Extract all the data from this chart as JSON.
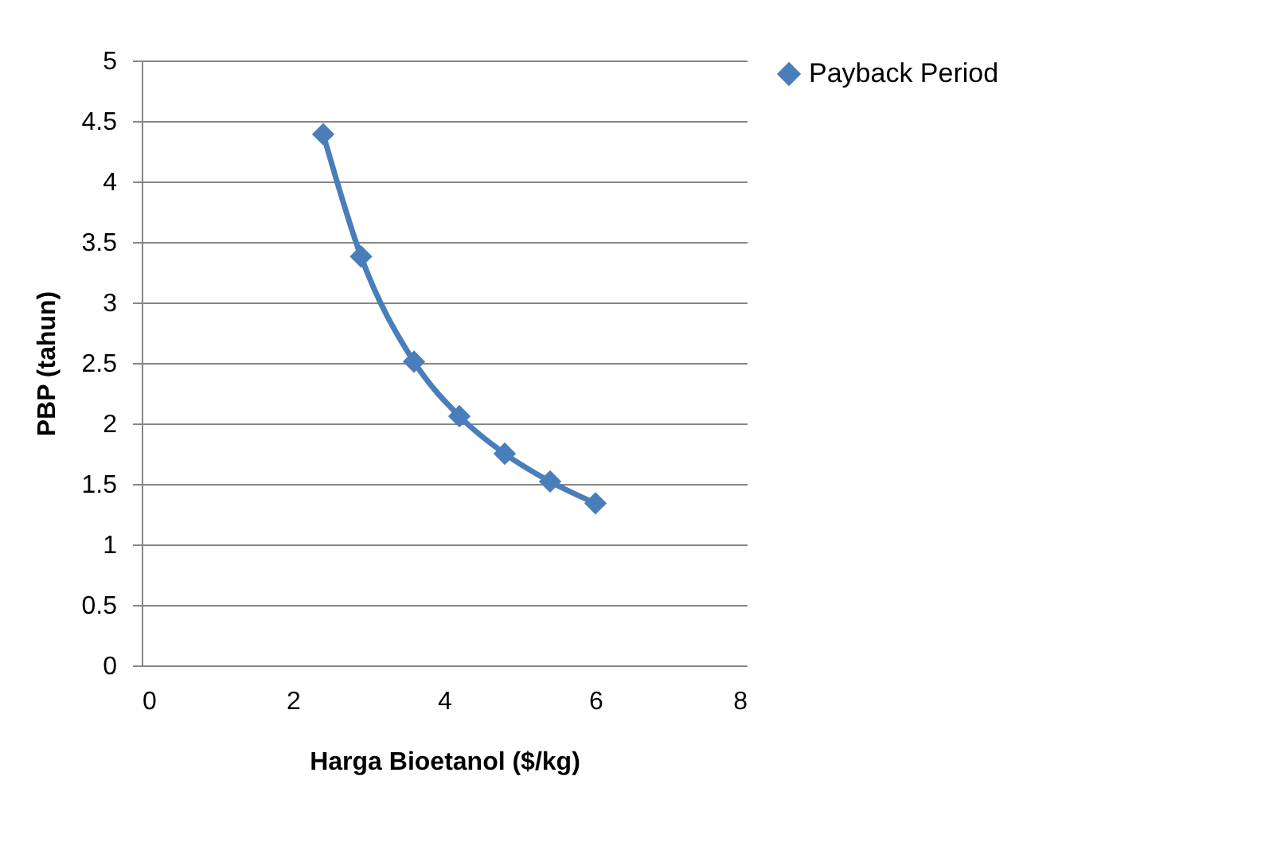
{
  "chart_data": {
    "type": "line",
    "xlabel": "Harga Bioetanol ($/kg)",
    "ylabel": "PBP (tahun)",
    "x": [
      2.4,
      2.9,
      3.6,
      4.2,
      4.8,
      5.4,
      6.0
    ],
    "series": [
      {
        "name": "Payback Period",
        "color": "#4a7ebb",
        "values": [
          4.39,
          3.38,
          2.51,
          2.06,
          1.75,
          1.52,
          1.34
        ]
      }
    ],
    "xlim": [
      0,
      8
    ],
    "xticks": [
      0,
      2,
      4,
      6,
      8
    ],
    "ylim": [
      0,
      5
    ],
    "yticks": [
      0,
      0.5,
      1,
      1.5,
      2,
      2.5,
      3,
      3.5,
      4,
      4.5,
      5
    ],
    "grid": "y",
    "legend": "right",
    "marker": "diamond",
    "line_style": "solid"
  }
}
